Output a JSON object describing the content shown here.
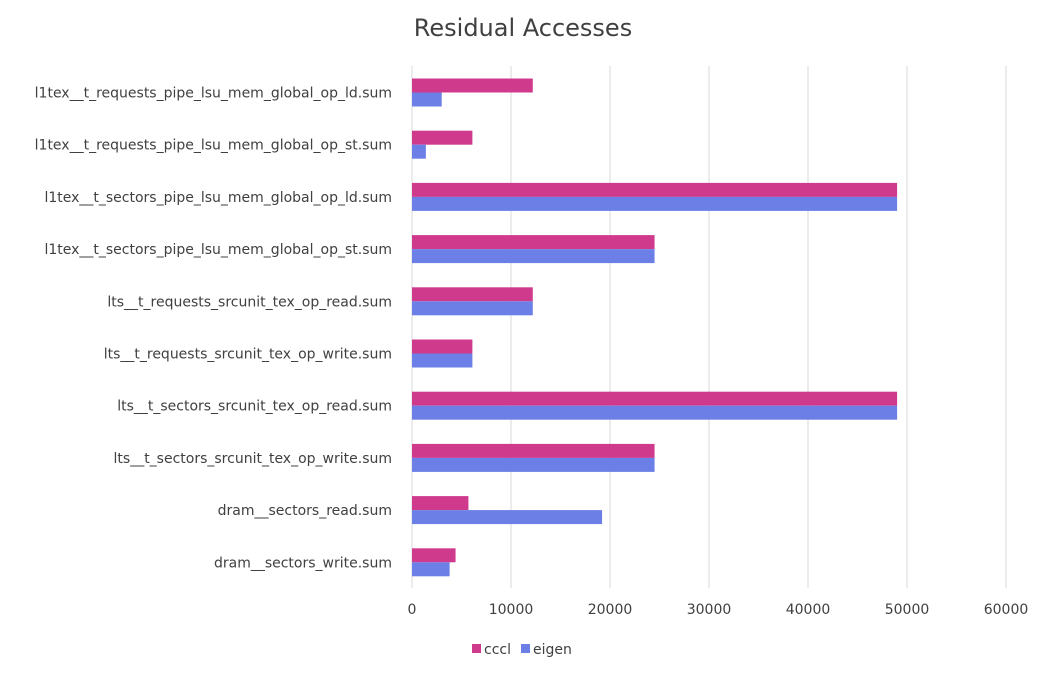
{
  "chart_data": {
    "type": "bar",
    "orientation": "horizontal",
    "title": "Residual Accesses",
    "xlabel": "",
    "ylabel": "",
    "xlim": [
      0,
      60000
    ],
    "x_ticks": [
      0,
      10000,
      20000,
      30000,
      40000,
      50000,
      60000
    ],
    "grid": true,
    "legend_position": "bottom",
    "categories": [
      "l1tex__t_requests_pipe_lsu_mem_global_op_ld.sum",
      "l1tex__t_requests_pipe_lsu_mem_global_op_st.sum",
      "l1tex__t_sectors_pipe_lsu_mem_global_op_ld.sum",
      "l1tex__t_sectors_pipe_lsu_mem_global_op_st.sum",
      "lts__t_requests_srcunit_tex_op_read.sum",
      "lts__t_requests_srcunit_tex_op_write.sum",
      "lts__t_sectors_srcunit_tex_op_read.sum",
      "lts__t_sectors_srcunit_tex_op_write.sum",
      "dram__sectors_read.sum",
      "dram__sectors_write.sum"
    ],
    "series": [
      {
        "name": "cccl",
        "color": "#d03a8c",
        "values": [
          12200,
          6100,
          49000,
          24500,
          12200,
          6100,
          49000,
          24500,
          5700,
          4400
        ]
      },
      {
        "name": "eigen",
        "color": "#6c7fe6",
        "values": [
          3000,
          1400,
          49000,
          24500,
          12200,
          6100,
          49000,
          24500,
          19200,
          3800
        ]
      }
    ]
  }
}
